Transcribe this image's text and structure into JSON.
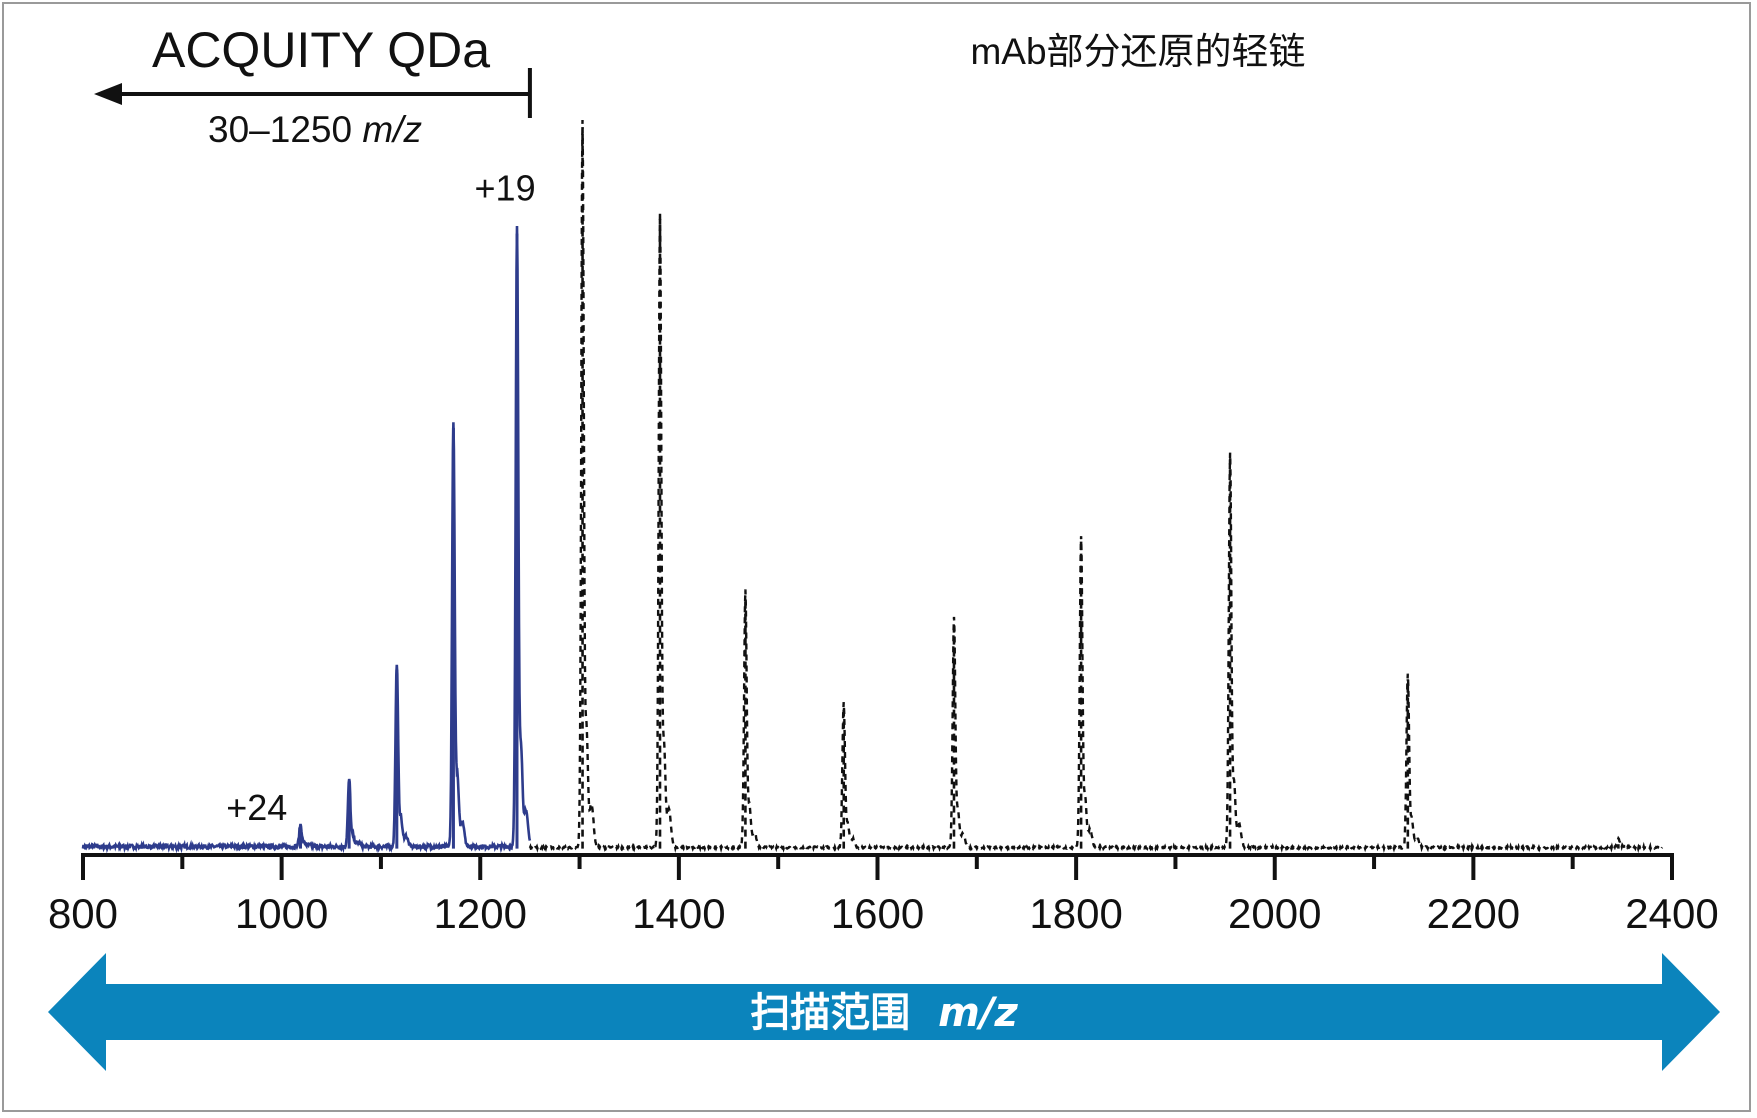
{
  "chart_data": {
    "type": "line",
    "title": "mAb部分还原的轻链",
    "xlabel": "扫描范围 m/z",
    "xlabel_prefix": "扫描范围",
    "xlabel_unit": "m/z",
    "ylabel": "",
    "xlim": [
      800,
      2400
    ],
    "ylim": [
      0,
      100
    ],
    "grid": false,
    "x_ticks": [
      800,
      1000,
      1200,
      1400,
      1600,
      1800,
      2000,
      2200,
      2400
    ],
    "instrument_label": "ACQUITY QDa",
    "range_label": "30–1250",
    "range_label_prefix": "30–1250",
    "range_label_unit": "m/z",
    "range_limit": 1250,
    "series": [
      {
        "style": "solid",
        "color": "#2e3c8c",
        "baseline": 0.6,
        "range": [
          800,
          1250
        ],
        "peaks": [
          {
            "x": 1019,
            "y": 3.0
          },
          {
            "x": 1068,
            "y": 9.2
          },
          {
            "x": 1116,
            "y": 25.0
          },
          {
            "x": 1173,
            "y": 58.0
          },
          {
            "x": 1237,
            "y": 84.5
          }
        ]
      },
      {
        "style": "dashed",
        "color": "#111111",
        "baseline": 0.6,
        "range": [
          1250,
          2390
        ],
        "peaks": [
          {
            "x": 1303,
            "y": 99.0
          },
          {
            "x": 1381,
            "y": 86.5
          },
          {
            "x": 1467,
            "y": 35.0
          },
          {
            "x": 1566,
            "y": 19.7
          },
          {
            "x": 1677,
            "y": 31.5
          },
          {
            "x": 1805,
            "y": 42.5
          },
          {
            "x": 1955,
            "y": 53.7
          },
          {
            "x": 2134,
            "y": 23.7
          },
          {
            "x": 2346,
            "y": 1.2
          }
        ]
      }
    ],
    "annotations": [
      {
        "text": "+24",
        "x": 975,
        "y": 4.5
      },
      {
        "text": "+19",
        "x": 1225,
        "y": 89.0
      }
    ]
  },
  "colors": {
    "banner": "#0b84bc",
    "qda_trace": "#2e3c8c",
    "full_trace": "#111111"
  }
}
